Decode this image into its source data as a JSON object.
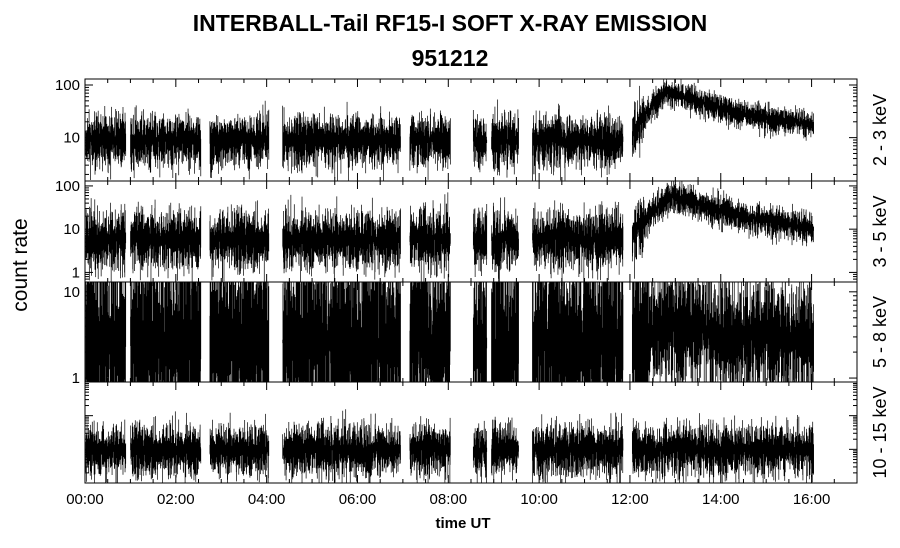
{
  "title_line1": "INTERBALL-Tail RF15-I SOFT X-RAY EMISSION",
  "title_line2": "951212",
  "chart_data": {
    "type": "line",
    "ylabel": "count rate",
    "xlabel": "time UT",
    "x_ticklabels": [
      "00:00",
      "02:00",
      "04:00",
      "06:00",
      "08:00",
      "10:00",
      "12:00",
      "14:00",
      "16:00"
    ],
    "x_range_hours": [
      0,
      17
    ],
    "y_scale": "log",
    "data_gaps_hours": [
      [
        0.9,
        1.0
      ],
      [
        2.55,
        2.75
      ],
      [
        4.05,
        4.35
      ],
      [
        6.95,
        7.15
      ],
      [
        8.05,
        8.55
      ],
      [
        8.85,
        8.95
      ],
      [
        9.55,
        9.85
      ],
      [
        11.85,
        12.05
      ]
    ],
    "panels": [
      {
        "label": "2 - 3 keV",
        "yrange": [
          1.5,
          130
        ],
        "y_ticklabels": [
          "10",
          "100"
        ],
        "baseline": 9,
        "noise": 0.32,
        "event": {
          "start_hour": 12.0,
          "peak_hour": 12.8,
          "peak_value": 80,
          "end_value": 15
        }
      },
      {
        "label": "3 - 5 keV",
        "yrange": [
          0.6,
          130
        ],
        "y_ticklabels": [
          "1",
          "10",
          "100"
        ],
        "baseline": 6,
        "noise": 0.45,
        "event": {
          "start_hour": 12.0,
          "peak_hour": 12.9,
          "peak_value": 60,
          "end_value": 8
        }
      },
      {
        "label": "5 - 8 keV",
        "yrange": [
          0.9,
          13
        ],
        "y_ticklabels": [
          "1",
          "10"
        ],
        "baseline": 2.6,
        "noise": 0.9,
        "event": {
          "start_hour": 12.1,
          "peak_hour": 12.9,
          "peak_value": 4.5,
          "end_value": 2.8
        }
      },
      {
        "label": "10 - 15 keV",
        "yrange": [
          0.01,
          10
        ],
        "y_ticklabels": [],
        "baseline": 0.1,
        "noise": 0.5,
        "event": null
      }
    ]
  }
}
